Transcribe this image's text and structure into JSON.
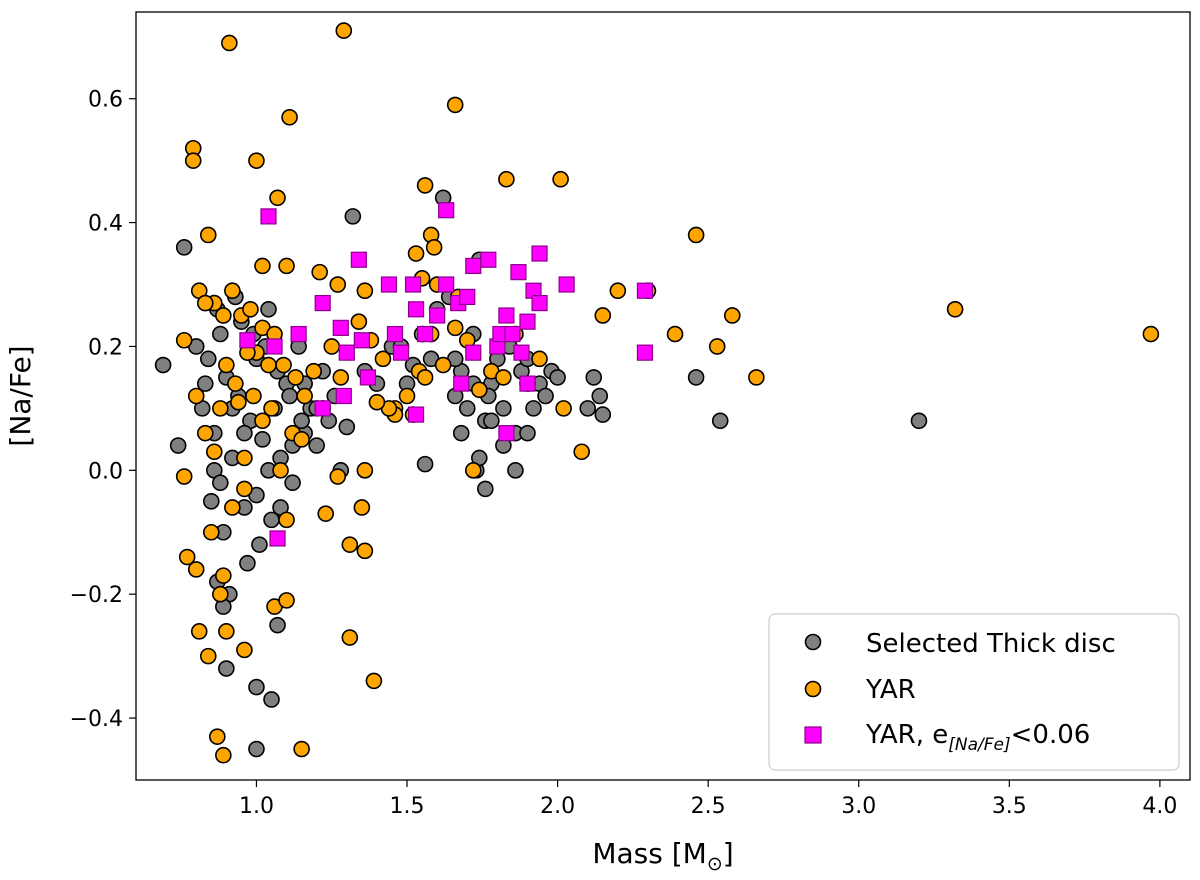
{
  "chart_data": {
    "type": "scatter",
    "xlabel": "Mass [M",
    "xlabel_sub": "⊙",
    "xlabel_end": "]",
    "ylabel": "[Na/Fe]",
    "xlim": [
      0.6,
      4.1
    ],
    "ylim": [
      -0.5,
      0.74
    ],
    "xticks": [
      1.0,
      1.5,
      2.0,
      2.5,
      3.0,
      3.5,
      4.0
    ],
    "xtick_labels": [
      "1.0",
      "1.5",
      "2.0",
      "2.5",
      "3.0",
      "3.5",
      "4.0"
    ],
    "yticks": [
      -0.4,
      -0.2,
      0.0,
      0.2,
      0.4,
      0.6
    ],
    "ytick_labels": [
      "−0.4",
      "−0.2",
      "0.0",
      "0.2",
      "0.4",
      "0.6"
    ],
    "grid": false,
    "legend_position": "bottom-right",
    "series": [
      {
        "name": "Selected Thick disc",
        "marker": "circle",
        "color": "#808080",
        "edge": "#000000",
        "points": [
          [
            0.69,
            0.17
          ],
          [
            0.76,
            0.36
          ],
          [
            0.74,
            0.04
          ],
          [
            0.8,
            0.2
          ],
          [
            0.82,
            0.1
          ],
          [
            0.84,
            0.18
          ],
          [
            0.86,
            0.06
          ],
          [
            0.88,
            0.22
          ],
          [
            0.9,
            0.15
          ],
          [
            0.92,
            0.02
          ],
          [
            0.94,
            0.12
          ],
          [
            0.96,
            -0.06
          ],
          [
            0.98,
            0.08
          ],
          [
            1.0,
            0.18
          ],
          [
            1.02,
            0.05
          ],
          [
            1.04,
            0.26
          ],
          [
            1.06,
            0.1
          ],
          [
            1.08,
            0.02
          ],
          [
            1.1,
            0.14
          ],
          [
            1.12,
            -0.02
          ],
          [
            1.14,
            0.2
          ],
          [
            1.16,
            0.06
          ],
          [
            1.18,
            0.1
          ],
          [
            1.2,
            0.04
          ],
          [
            1.22,
            0.16
          ],
          [
            1.24,
            0.08
          ],
          [
            1.26,
            0.12
          ],
          [
            1.28,
            0.0
          ],
          [
            1.3,
            0.07
          ],
          [
            1.32,
            0.41
          ],
          [
            0.87,
            0.26
          ],
          [
            0.89,
            -0.1
          ],
          [
            0.93,
            0.28
          ],
          [
            0.97,
            -0.15
          ],
          [
            1.01,
            -0.12
          ],
          [
            1.05,
            -0.08
          ],
          [
            0.85,
            -0.05
          ],
          [
            0.91,
            -0.2
          ],
          [
            0.95,
            0.24
          ],
          [
            0.99,
            0.22
          ],
          [
            1.03,
            0.2
          ],
          [
            1.07,
            0.16
          ],
          [
            1.11,
            0.12
          ],
          [
            1.15,
            0.08
          ],
          [
            0.83,
            0.14
          ],
          [
            0.86,
            0.0
          ],
          [
            0.88,
            -0.02
          ],
          [
            0.92,
            0.1
          ],
          [
            0.96,
            0.06
          ],
          [
            1.0,
            -0.04
          ],
          [
            1.04,
            0.0
          ],
          [
            1.08,
            -0.06
          ],
          [
            1.12,
            0.04
          ],
          [
            1.16,
            0.14
          ],
          [
            1.2,
            0.1
          ],
          [
            0.9,
            -0.32
          ],
          [
            1.0,
            -0.35
          ],
          [
            1.05,
            -0.37
          ],
          [
            1.0,
            -0.45
          ],
          [
            1.07,
            -0.25
          ],
          [
            0.89,
            -0.22
          ],
          [
            0.87,
            -0.18
          ],
          [
            1.36,
            0.16
          ],
          [
            1.4,
            0.14
          ],
          [
            1.45,
            0.2
          ],
          [
            1.5,
            0.14
          ],
          [
            1.55,
            0.22
          ],
          [
            1.58,
            0.18
          ],
          [
            1.6,
            0.26
          ],
          [
            1.62,
            0.44
          ],
          [
            1.64,
            0.28
          ],
          [
            1.66,
            0.12
          ],
          [
            1.68,
            0.16
          ],
          [
            1.7,
            0.1
          ],
          [
            1.72,
            0.22
          ],
          [
            1.74,
            0.34
          ],
          [
            1.76,
            0.08
          ],
          [
            1.78,
            0.14
          ],
          [
            1.8,
            0.18
          ],
          [
            1.82,
            0.1
          ],
          [
            1.84,
            0.2
          ],
          [
            1.86,
            0.06
          ],
          [
            1.88,
            0.16
          ],
          [
            1.9,
            0.18
          ],
          [
            1.92,
            0.1
          ],
          [
            1.94,
            0.14
          ],
          [
            1.96,
            0.12
          ],
          [
            1.98,
            0.16
          ],
          [
            2.0,
            0.15
          ],
          [
            2.1,
            0.1
          ],
          [
            2.12,
            0.15
          ],
          [
            2.14,
            0.12
          ],
          [
            2.15,
            0.09
          ],
          [
            1.56,
            0.01
          ],
          [
            1.73,
            0.0
          ],
          [
            1.76,
            -0.03
          ],
          [
            1.82,
            0.04
          ],
          [
            1.74,
            0.02
          ],
          [
            1.86,
            0.0
          ],
          [
            1.68,
            0.06
          ],
          [
            1.72,
            0.14
          ],
          [
            1.77,
            0.12
          ],
          [
            2.46,
            0.15
          ],
          [
            2.54,
            0.08
          ],
          [
            3.2,
            0.08
          ],
          [
            1.48,
            0.2
          ],
          [
            1.52,
            0.17
          ],
          [
            1.66,
            0.18
          ],
          [
            1.78,
            0.08
          ],
          [
            1.9,
            0.06
          ]
        ]
      },
      {
        "name": "YAR",
        "marker": "circle",
        "color": "#ffa500",
        "edge": "#000000",
        "points": [
          [
            0.91,
            0.69
          ],
          [
            1.29,
            0.71
          ],
          [
            1.66,
            0.59
          ],
          [
            0.79,
            0.52
          ],
          [
            0.79,
            0.5
          ],
          [
            1.0,
            0.5
          ],
          [
            1.11,
            0.57
          ],
          [
            1.07,
            0.44
          ],
          [
            1.56,
            0.46
          ],
          [
            1.83,
            0.47
          ],
          [
            2.01,
            0.47
          ],
          [
            1.58,
            0.38
          ],
          [
            1.59,
            0.36
          ],
          [
            2.46,
            0.38
          ],
          [
            0.84,
            0.38
          ],
          [
            1.02,
            0.33
          ],
          [
            1.1,
            0.33
          ],
          [
            1.21,
            0.32
          ],
          [
            1.27,
            0.3
          ],
          [
            1.36,
            0.29
          ],
          [
            1.53,
            0.35
          ],
          [
            1.55,
            0.31
          ],
          [
            1.6,
            0.3
          ],
          [
            1.67,
            0.28
          ],
          [
            2.2,
            0.29
          ],
          [
            2.3,
            0.29
          ],
          [
            2.15,
            0.25
          ],
          [
            2.39,
            0.22
          ],
          [
            2.58,
            0.25
          ],
          [
            2.53,
            0.2
          ],
          [
            2.66,
            0.15
          ],
          [
            3.32,
            0.26
          ],
          [
            3.97,
            0.22
          ],
          [
            0.76,
            0.21
          ],
          [
            0.81,
            0.29
          ],
          [
            0.86,
            0.27
          ],
          [
            0.89,
            0.25
          ],
          [
            0.92,
            0.29
          ],
          [
            0.95,
            0.25
          ],
          [
            0.98,
            0.26
          ],
          [
            1.02,
            0.23
          ],
          [
            1.06,
            0.22
          ],
          [
            1.09,
            0.17
          ],
          [
            1.13,
            0.15
          ],
          [
            1.16,
            0.12
          ],
          [
            1.19,
            0.16
          ],
          [
            1.22,
            0.1
          ],
          [
            1.25,
            0.2
          ],
          [
            1.28,
            0.15
          ],
          [
            1.34,
            0.24
          ],
          [
            1.38,
            0.21
          ],
          [
            1.42,
            0.18
          ],
          [
            1.46,
            0.1
          ],
          [
            1.5,
            0.12
          ],
          [
            1.54,
            0.16
          ],
          [
            1.58,
            0.22
          ],
          [
            1.62,
            0.17
          ],
          [
            1.66,
            0.23
          ],
          [
            1.7,
            0.21
          ],
          [
            1.74,
            0.13
          ],
          [
            1.78,
            0.16
          ],
          [
            1.82,
            0.15
          ],
          [
            1.86,
            0.22
          ],
          [
            1.9,
            0.14
          ],
          [
            1.94,
            0.18
          ],
          [
            2.02,
            0.1
          ],
          [
            2.08,
            0.03
          ],
          [
            0.8,
            0.12
          ],
          [
            0.83,
            0.06
          ],
          [
            0.86,
            0.03
          ],
          [
            0.88,
            0.1
          ],
          [
            0.9,
            0.17
          ],
          [
            0.93,
            0.14
          ],
          [
            0.96,
            0.02
          ],
          [
            0.99,
            0.12
          ],
          [
            1.02,
            0.08
          ],
          [
            1.05,
            0.1
          ],
          [
            1.08,
            0.0
          ],
          [
            1.12,
            0.06
          ],
          [
            1.15,
            0.05
          ],
          [
            0.76,
            -0.01
          ],
          [
            0.77,
            -0.14
          ],
          [
            0.8,
            -0.16
          ],
          [
            0.85,
            -0.1
          ],
          [
            0.92,
            -0.06
          ],
          [
            0.96,
            -0.03
          ],
          [
            1.06,
            -0.22
          ],
          [
            1.1,
            -0.21
          ],
          [
            1.1,
            -0.08
          ],
          [
            1.23,
            -0.07
          ],
          [
            1.35,
            -0.06
          ],
          [
            1.31,
            -0.12
          ],
          [
            1.36,
            -0.13
          ],
          [
            1.31,
            -0.27
          ],
          [
            1.39,
            -0.34
          ],
          [
            0.81,
            -0.26
          ],
          [
            0.84,
            -0.3
          ],
          [
            0.88,
            -0.2
          ],
          [
            0.96,
            -0.29
          ],
          [
            0.9,
            -0.26
          ],
          [
            0.87,
            -0.43
          ],
          [
            0.89,
            -0.46
          ],
          [
            1.15,
            -0.45
          ],
          [
            0.89,
            -0.17
          ],
          [
            1.36,
            0.0
          ],
          [
            1.27,
            -0.01
          ],
          [
            1.72,
            0.0
          ],
          [
            1.56,
            0.15
          ],
          [
            1.46,
            0.09
          ],
          [
            1.52,
            0.09
          ],
          [
            0.94,
            0.11
          ],
          [
            1.0,
            0.19
          ],
          [
            1.04,
            0.17
          ],
          [
            0.97,
            0.19
          ],
          [
            0.83,
            0.27
          ],
          [
            1.44,
            0.1
          ],
          [
            1.4,
            0.11
          ]
        ]
      },
      {
        "name": "YAR, e",
        "name_sub": "[Na/Fe]",
        "name_end": "<0.06",
        "marker": "square",
        "color": "#ff00ff",
        "edge": "#8b008b",
        "points": [
          [
            1.04,
            0.41
          ],
          [
            1.63,
            0.42
          ],
          [
            0.97,
            0.21
          ],
          [
            1.06,
            0.2
          ],
          [
            1.14,
            0.22
          ],
          [
            1.22,
            0.27
          ],
          [
            1.28,
            0.23
          ],
          [
            1.3,
            0.19
          ],
          [
            1.34,
            0.34
          ],
          [
            1.35,
            0.21
          ],
          [
            1.37,
            0.15
          ],
          [
            1.44,
            0.3
          ],
          [
            1.46,
            0.22
          ],
          [
            1.48,
            0.19
          ],
          [
            1.52,
            0.3
          ],
          [
            1.53,
            0.26
          ],
          [
            1.56,
            0.22
          ],
          [
            1.6,
            0.25
          ],
          [
            1.63,
            0.3
          ],
          [
            1.67,
            0.27
          ],
          [
            1.7,
            0.28
          ],
          [
            1.72,
            0.33
          ],
          [
            1.72,
            0.19
          ],
          [
            1.77,
            0.34
          ],
          [
            1.68,
            0.14
          ],
          [
            1.8,
            0.2
          ],
          [
            1.81,
            0.22
          ],
          [
            1.83,
            0.25
          ],
          [
            1.85,
            0.22
          ],
          [
            1.87,
            0.32
          ],
          [
            1.88,
            0.19
          ],
          [
            1.9,
            0.24
          ],
          [
            1.92,
            0.29
          ],
          [
            1.94,
            0.27
          ],
          [
            1.94,
            0.35
          ],
          [
            1.9,
            0.14
          ],
          [
            2.03,
            0.3
          ],
          [
            2.29,
            0.29
          ],
          [
            2.29,
            0.19
          ],
          [
            1.22,
            0.1
          ],
          [
            1.29,
            0.12
          ],
          [
            1.53,
            0.09
          ],
          [
            1.83,
            0.06
          ],
          [
            1.07,
            -0.11
          ]
        ]
      }
    ]
  }
}
